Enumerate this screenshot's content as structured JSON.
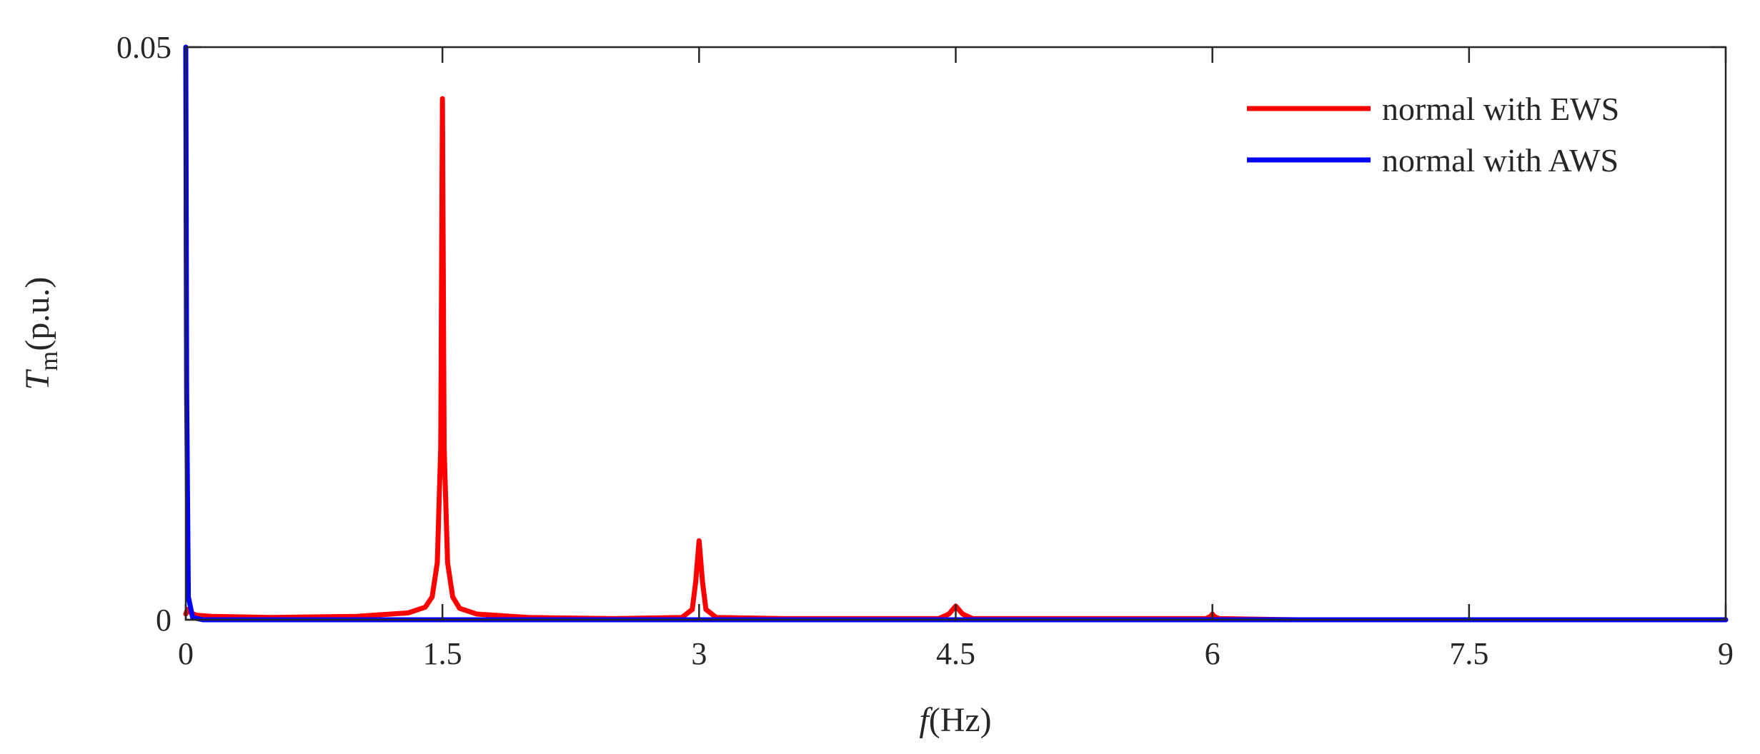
{
  "chart_data": {
    "type": "line",
    "xlabel": {
      "var": "f",
      "unit": "(Hz)"
    },
    "ylabel": {
      "var": "T",
      "sub": "m",
      "unit": "(p.u.)"
    },
    "xlim": [
      0,
      9
    ],
    "ylim": [
      0,
      0.05
    ],
    "xticks": [
      0,
      1.5,
      3,
      4.5,
      6,
      7.5,
      9
    ],
    "xtick_labels": [
      "0",
      "1.5",
      "3",
      "4.5",
      "6",
      "7.5",
      "9"
    ],
    "yticks": [
      0,
      0.05
    ],
    "ytick_labels": [
      "0",
      "0.05"
    ],
    "grid": false,
    "legend_position": "top-right",
    "series": [
      {
        "name": "normal with EWS",
        "color": "#ff0000",
        "x": [
          0,
          0.01,
          0.03,
          0.06,
          0.15,
          0.5,
          1.0,
          1.3,
          1.4,
          1.44,
          1.47,
          1.49,
          1.5,
          1.51,
          1.53,
          1.56,
          1.6,
          1.7,
          2.0,
          2.5,
          2.9,
          2.96,
          2.98,
          3.0,
          3.02,
          3.04,
          3.1,
          3.5,
          4.4,
          4.46,
          4.5,
          4.54,
          4.6,
          5.0,
          5.96,
          5.99,
          6.0,
          6.01,
          6.04,
          6.5,
          9.0
        ],
        "y": [
          0.0005,
          0.0009,
          0.0006,
          0.0004,
          0.0003,
          0.0002,
          0.0003,
          0.0006,
          0.0011,
          0.002,
          0.005,
          0.015,
          0.0455,
          0.015,
          0.005,
          0.002,
          0.001,
          0.0005,
          0.0002,
          0.0001,
          0.0002,
          0.0009,
          0.0033,
          0.0069,
          0.0033,
          0.0009,
          0.0002,
          0.0001,
          0.0001,
          0.0005,
          0.0012,
          0.0005,
          0.0001,
          0.0001,
          0.0001,
          0.0003,
          0.0005,
          0.0003,
          0.0001,
          0.0,
          0.0
        ]
      },
      {
        "name": "normal with AWS",
        "color": "#0000ff",
        "x": [
          0,
          0.005,
          0.015,
          0.04,
          0.1,
          1.0,
          3.0,
          6.0,
          9.0
        ],
        "y": [
          0.05,
          0.02,
          0.002,
          0.0002,
          0.0,
          0.0,
          0.0,
          0.0,
          0.0
        ]
      }
    ]
  }
}
